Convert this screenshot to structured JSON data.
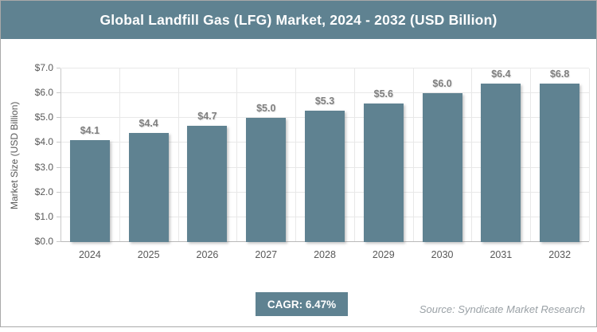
{
  "header": {
    "title": "Global Landfill Gas (LFG) Market, 2024 - 2032 (USD Billion)"
  },
  "chart_data": {
    "type": "bar",
    "title": "Global Landfill Gas (LFG) Market, 2024 - 2032 (USD Billion)",
    "categories": [
      "2024",
      "2025",
      "2026",
      "2027",
      "2028",
      "2029",
      "2030",
      "2031",
      "2032"
    ],
    "values": [
      4.1,
      4.4,
      4.7,
      5.0,
      5.3,
      5.6,
      6.0,
      6.4,
      6.8
    ],
    "bar_labels": [
      "$4.1",
      "$4.4",
      "$4.7",
      "$5.0",
      "$5.3",
      "$5.6",
      "$6.0",
      "$6.4",
      "$6.8"
    ],
    "xlabel": "",
    "ylabel": "Market Size (USD Billion)",
    "ylim": [
      0,
      7
    ],
    "y_tick_labels": [
      "$0.0",
      "$1.0",
      "$2.0",
      "$3.0",
      "$4.0",
      "$5.0",
      "$6.0",
      "$7.0"
    ],
    "grid": true,
    "legend": "none"
  },
  "footer": {
    "cagr_label": "CAGR: 6.47%",
    "source": "Source: Syndicate Market Research"
  },
  "colors": {
    "accent": "#5f8291",
    "bar": "#5f8291",
    "grid": "#e8e8e8",
    "axis": "#c9c9c9",
    "tick_label": "#595959",
    "data_label": "#7f7f7f",
    "source_text": "#9aa1a6",
    "frame_border": "#a9a9a9",
    "title_text": "#ffffff"
  }
}
